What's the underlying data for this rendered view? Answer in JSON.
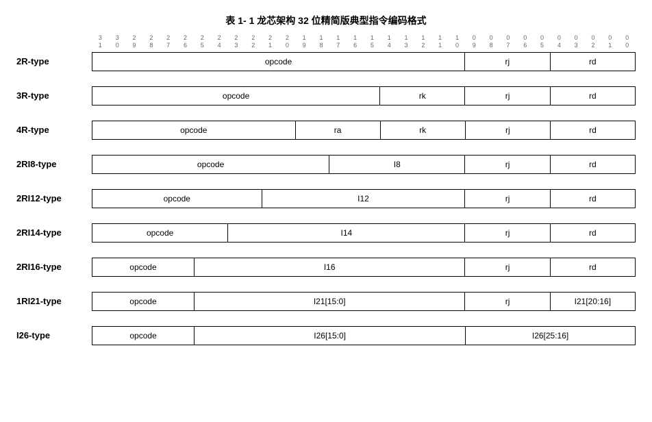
{
  "title": "表 1- 1 龙芯架构 32 位精简版典型指令编码格式",
  "bits": [
    {
      "hi": "3",
      "lo": "1"
    },
    {
      "hi": "3",
      "lo": "0"
    },
    {
      "hi": "2",
      "lo": "9"
    },
    {
      "hi": "2",
      "lo": "8"
    },
    {
      "hi": "2",
      "lo": "7"
    },
    {
      "hi": "2",
      "lo": "6"
    },
    {
      "hi": "2",
      "lo": "5"
    },
    {
      "hi": "2",
      "lo": "4"
    },
    {
      "hi": "2",
      "lo": "3"
    },
    {
      "hi": "2",
      "lo": "2"
    },
    {
      "hi": "2",
      "lo": "1"
    },
    {
      "hi": "2",
      "lo": "0"
    },
    {
      "hi": "1",
      "lo": "9"
    },
    {
      "hi": "1",
      "lo": "8"
    },
    {
      "hi": "1",
      "lo": "7"
    },
    {
      "hi": "1",
      "lo": "6"
    },
    {
      "hi": "1",
      "lo": "5"
    },
    {
      "hi": "1",
      "lo": "4"
    },
    {
      "hi": "1",
      "lo": "3"
    },
    {
      "hi": "1",
      "lo": "2"
    },
    {
      "hi": "1",
      "lo": "1"
    },
    {
      "hi": "1",
      "lo": "0"
    },
    {
      "hi": "0",
      "lo": "9"
    },
    {
      "hi": "0",
      "lo": "8"
    },
    {
      "hi": "0",
      "lo": "7"
    },
    {
      "hi": "0",
      "lo": "6"
    },
    {
      "hi": "0",
      "lo": "5"
    },
    {
      "hi": "0",
      "lo": "4"
    },
    {
      "hi": "0",
      "lo": "3"
    },
    {
      "hi": "0",
      "lo": "2"
    },
    {
      "hi": "0",
      "lo": "1"
    },
    {
      "hi": "0",
      "lo": "0"
    }
  ],
  "rows": [
    {
      "label": "2R-type",
      "fields": [
        {
          "text": "opcode",
          "bits": 22
        },
        {
          "text": "rj",
          "bits": 5
        },
        {
          "text": "rd",
          "bits": 5
        }
      ]
    },
    {
      "label": "3R-type",
      "fields": [
        {
          "text": "opcode",
          "bits": 17
        },
        {
          "text": "rk",
          "bits": 5
        },
        {
          "text": "rj",
          "bits": 5
        },
        {
          "text": "rd",
          "bits": 5
        }
      ]
    },
    {
      "label": "4R-type",
      "fields": [
        {
          "text": "opcode",
          "bits": 12
        },
        {
          "text": "ra",
          "bits": 5
        },
        {
          "text": "rk",
          "bits": 5
        },
        {
          "text": "rj",
          "bits": 5
        },
        {
          "text": "rd",
          "bits": 5
        }
      ]
    },
    {
      "label": "2RI8-type",
      "fields": [
        {
          "text": "opcode",
          "bits": 14
        },
        {
          "text": "I8",
          "bits": 8
        },
        {
          "text": "rj",
          "bits": 5
        },
        {
          "text": "rd",
          "bits": 5
        }
      ]
    },
    {
      "label": "2RI12-type",
      "fields": [
        {
          "text": "opcode",
          "bits": 10
        },
        {
          "text": "I12",
          "bits": 12
        },
        {
          "text": "rj",
          "bits": 5
        },
        {
          "text": "rd",
          "bits": 5
        }
      ]
    },
    {
      "label": "2RI14-type",
      "fields": [
        {
          "text": "opcode",
          "bits": 8
        },
        {
          "text": "I14",
          "bits": 14
        },
        {
          "text": "rj",
          "bits": 5
        },
        {
          "text": "rd",
          "bits": 5
        }
      ]
    },
    {
      "label": "2RI16-type",
      "fields": [
        {
          "text": "opcode",
          "bits": 6
        },
        {
          "text": "I16",
          "bits": 16
        },
        {
          "text": "rj",
          "bits": 5
        },
        {
          "text": "rd",
          "bits": 5
        }
      ]
    },
    {
      "label": "1RI21-type",
      "fields": [
        {
          "text": "opcode",
          "bits": 6
        },
        {
          "text": "I21[15:0]",
          "bits": 16
        },
        {
          "text": "rj",
          "bits": 5
        },
        {
          "text": "I21[20:16]",
          "bits": 5
        }
      ]
    },
    {
      "label": "I26-type",
      "fields": [
        {
          "text": "opcode",
          "bits": 6
        },
        {
          "text": "I26[15:0]",
          "bits": 16
        },
        {
          "text": "I26[25:16]",
          "bits": 10
        }
      ]
    }
  ]
}
